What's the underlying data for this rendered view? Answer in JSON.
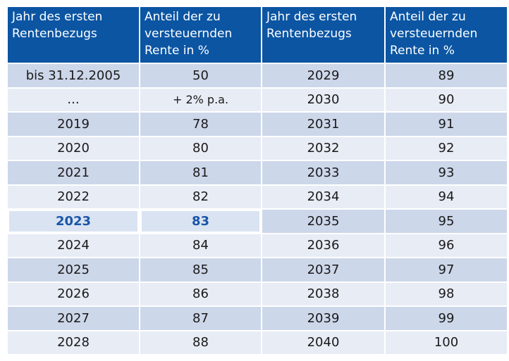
{
  "headers": [
    "Jahr des ersten Rentenbezugs",
    "Anteil der zu versteuernden Rente in %",
    "Jahr des ersten Rentenbezugs",
    "Anteil der zu versteuernden Rente in %"
  ],
  "rows": [
    [
      "bis 31.12.2005",
      "50",
      "2029",
      "89"
    ],
    [
      "...",
      "+ 2% p.a.",
      "2030",
      "90"
    ],
    [
      "2019",
      "78",
      "2031",
      "91"
    ],
    [
      "2020",
      "80",
      "2032",
      "92"
    ],
    [
      "2021",
      "81",
      "2033",
      "93"
    ],
    [
      "2022",
      "82",
      "2034",
      "94"
    ],
    [
      "2023",
      "83",
      "2035",
      "95"
    ],
    [
      "2024",
      "84",
      "2036",
      "96"
    ],
    [
      "2025",
      "85",
      "2037",
      "97"
    ],
    [
      "2026",
      "86",
      "2038",
      "98"
    ],
    [
      "2027",
      "87",
      "2039",
      "99"
    ],
    [
      "2028",
      "88",
      "2040",
      "100"
    ]
  ],
  "highlighted_year": "2023",
  "colors": {
    "header_bg": "#0b55a3",
    "row_odd": "#cdd7ea",
    "row_even": "#e7ecf5",
    "highlight_text": "#1a56a8"
  }
}
